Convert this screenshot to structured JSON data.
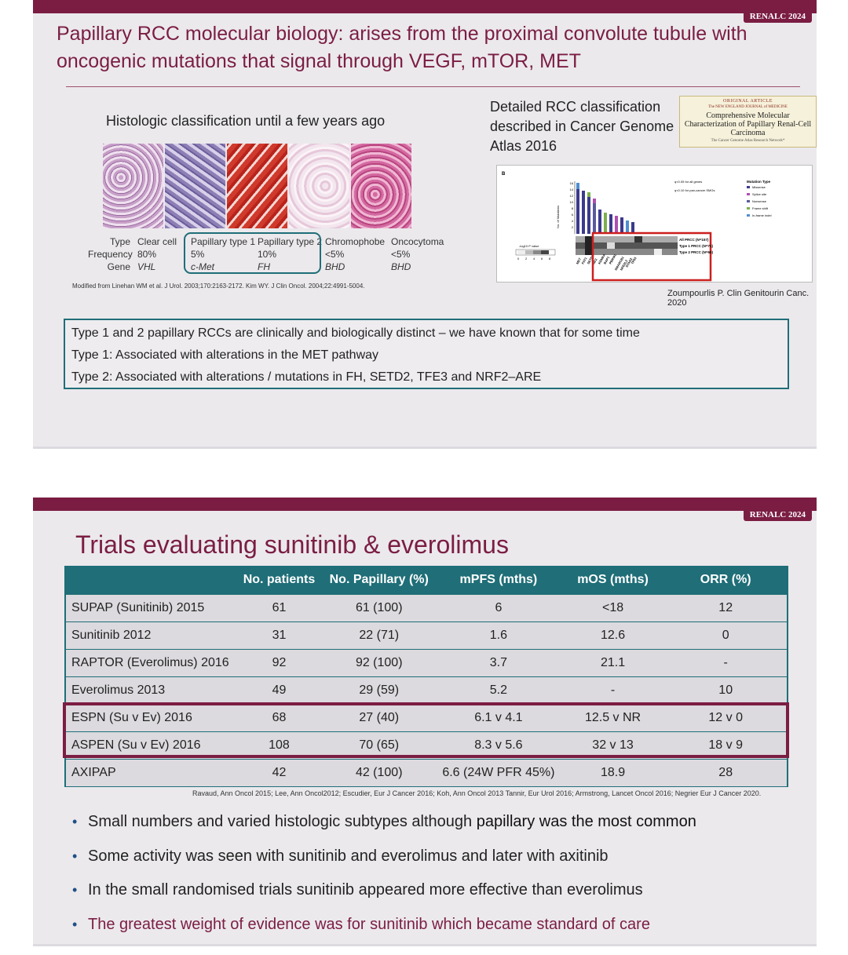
{
  "slide1": {
    "brand": "RENALC 2024",
    "title": "Papillary RCC molecular biology: arises from the proximal convolute tubule with oncogenic mutations that signal through VEGF, mTOR, MET",
    "histology": {
      "heading": "Histologic classification until a few years ago",
      "row_labels": [
        "Type",
        "Frequency",
        "Gene"
      ],
      "columns": [
        {
          "type": "Clear cell",
          "frequency": "80%",
          "gene": "VHL"
        },
        {
          "type": "Papillary type 1",
          "frequency": "5%",
          "gene": "c-Met"
        },
        {
          "type": "Papillary type 2",
          "frequency": "10%",
          "gene": "FH"
        },
        {
          "type": "Chromophobe",
          "frequency": "<5%",
          "gene": "BHD"
        },
        {
          "type": "Oncocytoma",
          "frequency": "<5%",
          "gene": "BHD"
        }
      ],
      "reference": "Modified from Linehan WM et al. J Urol. 2003;170:2163-2172.  Kim WY. J Clin Oncol. 2004;22:4991-5004."
    },
    "tcga": {
      "heading": "Detailed RCC classification described in Cancer Genome Atlas 2016",
      "journal_tag": "ORIGINAL ARTICLE",
      "journal_name": "The NEW ENGLAND JOURNAL of MEDICINE",
      "journal_title": "Comprehensive Molecular Characterization of Papillary Renal-Cell Carcinoma",
      "journal_authors": "The Cancer Genome Atlas Research Network*",
      "figure": {
        "panel_label": "B",
        "y_axis_label": "No. of Mutations",
        "y_ticks": [
          "16",
          "14",
          "12",
          "10",
          "8",
          "6",
          "4",
          "2"
        ],
        "pvalue_label": "-log10 P value",
        "pvalue_ticks": [
          "0",
          "2",
          "4",
          "6",
          "8"
        ],
        "genes": [
          "MET",
          "FAT1",
          "SETD2",
          "NF2",
          "KDM6A",
          "BAP1",
          "PBRM1",
          "SMARCB1",
          "NFE2L2",
          "STAG2",
          "TP53"
        ],
        "notes": [
          "q<0.05 for all genes",
          "q<0.10 for pan-cancer SMGs"
        ],
        "legend_title": "Mutation Type",
        "legend": [
          {
            "label": "Missense",
            "color": "#3b3a8c"
          },
          {
            "label": "Splice site",
            "color": "#b04fb0"
          },
          {
            "label": "Nonsense",
            "color": "#5a5a9a"
          },
          {
            "label": "Frame shift",
            "color": "#7bb04f"
          },
          {
            "label": "In-frame indel",
            "color": "#4f8fd0"
          }
        ],
        "groups": [
          "All PRCC (N=157)",
          "Type 1 PRCC (N=71)",
          "Type 2 PRCC (N=60)"
        ]
      },
      "citation": "Zoumpourlis P. Clin Genitourin Canc. 2020"
    },
    "summary": [
      "Type 1 and 2 papillary RCCs are clinically and biologically distinct – we have known that for some time",
      "Type 1: Associated with alterations in the MET pathway",
      "Type 2: Associated with alterations / mutations in FH, SETD2, TFE3 and NRF2–ARE"
    ],
    "colors": {
      "accent": "#7b1d43",
      "teal": "#1f6e78"
    }
  },
  "slide2": {
    "brand": "RENALC 2024",
    "title": "Trials evaluating sunitinib & everolimus",
    "table": {
      "headers": [
        "",
        "No. patients",
        "No. Papillary (%)",
        "mPFS (mths)",
        "mOS (mths)",
        "ORR (%)"
      ],
      "rows": [
        [
          "SUPAP (Sunitinib) 2015",
          "61",
          "61 (100)",
          "6",
          "<18",
          "12"
        ],
        [
          "Sunitinib 2012",
          "31",
          "22 (71)",
          "1.6",
          "12.6",
          "0"
        ],
        [
          "RAPTOR (Everolimus) 2016",
          "92",
          "92 (100)",
          "3.7",
          "21.1",
          "-"
        ],
        [
          "Everolimus 2013",
          "49",
          "29 (59)",
          "5.2",
          "-",
          "10"
        ],
        [
          "ESPN (Su v Ev) 2016",
          "68",
          "27 (40)",
          "6.1 v 4.1",
          "12.5 v NR",
          "12 v 0"
        ],
        [
          "ASPEN (Su v Ev) 2016",
          "108",
          "70 (65)",
          "8.3 v 5.6",
          "32 v 13",
          "18 v 9"
        ],
        [
          "AXIPAP",
          "42",
          "42 (100)",
          "6.6 (24W PFR 45%)",
          "18.9",
          "28"
        ]
      ]
    },
    "reference": "Ravaud, Ann Oncol 2015; Lee, Ann Oncol2012; Escudier, Eur J Cancer 2016; Koh, Ann Oncol 2013 Tannir, Eur Urol 2016; Armstrong, Lancet Oncol 2016; Negrier Eur J Cancer 2020.",
    "bullets": {
      "b1_pre": "Small numbers and varied histologic subtypes although ",
      "b1_bold": "papillary was the most common",
      "b2": "Some activity was seen with sunitinib and everolimus and later with axitinib",
      "b3": "In the small randomised trials sunitinib appeared more effective than everolimus",
      "b4": "The greatest weight of evidence was for sunitinib which became standard of care"
    }
  }
}
